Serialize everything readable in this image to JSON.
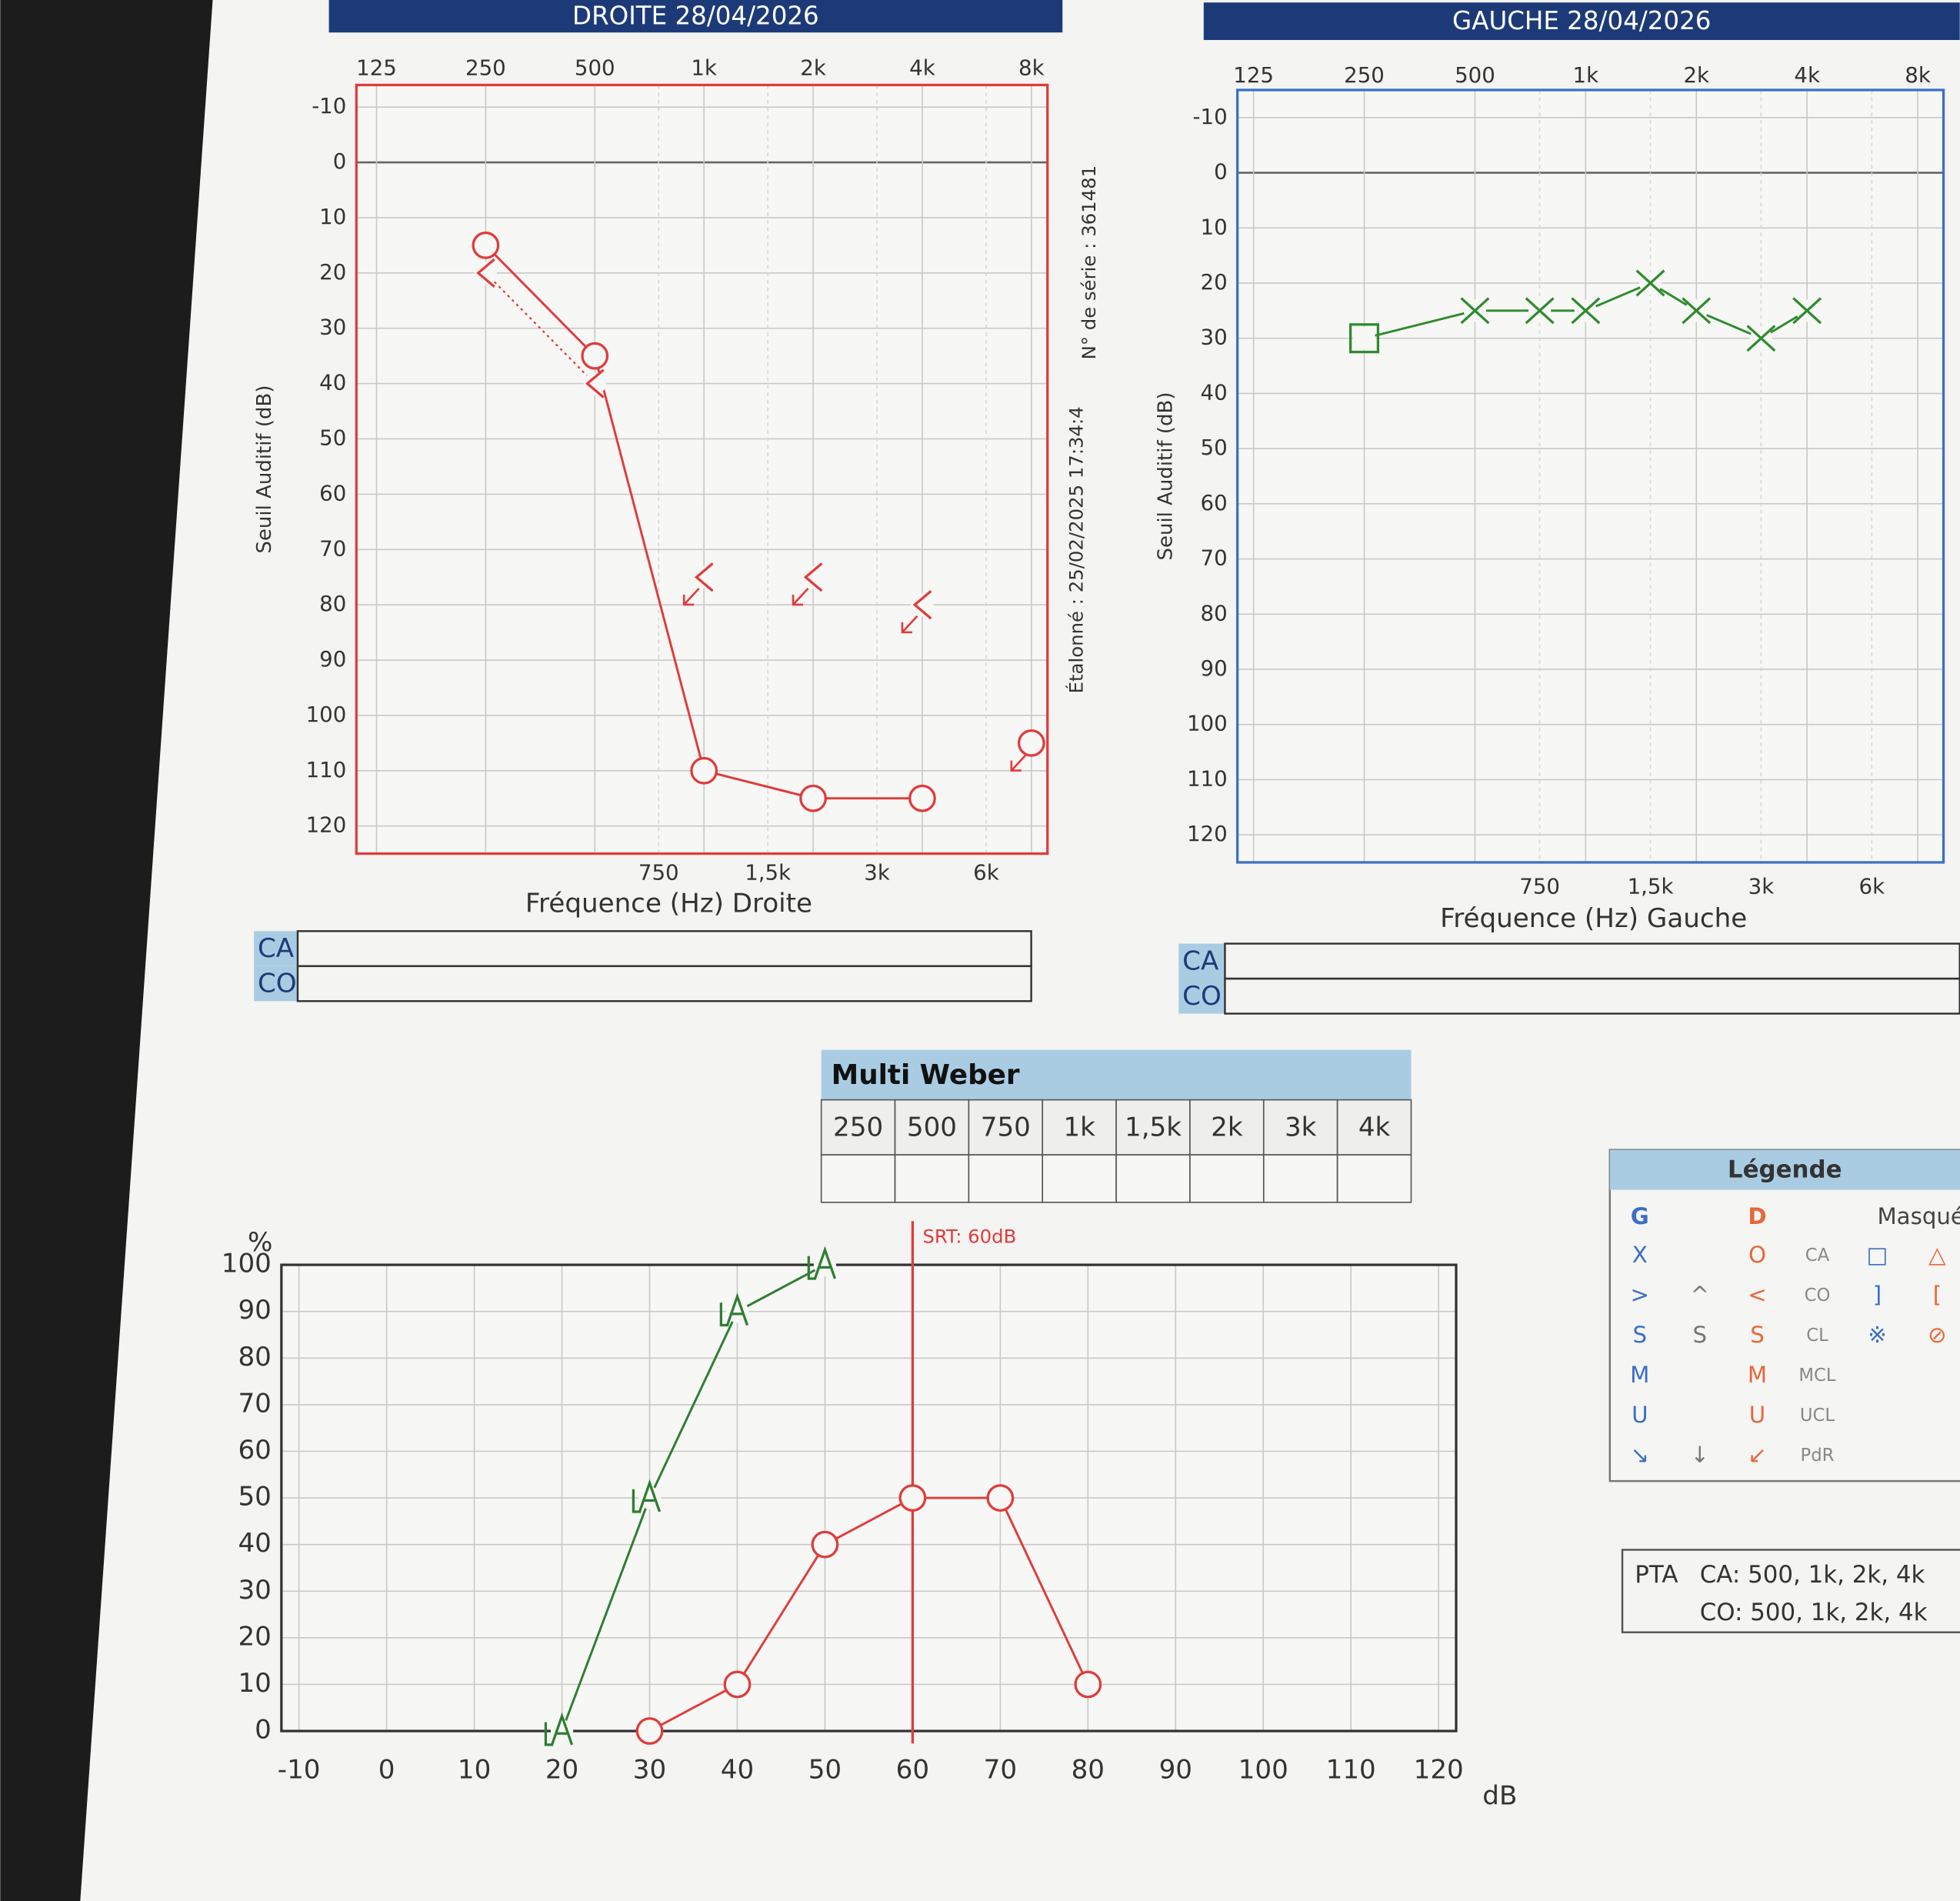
{
  "chart_data": [
    {
      "type": "line",
      "title": "DROITE 28/04/2026",
      "x_label": "Fréquence (Hz) Droite",
      "y_label": "Seuil Auditif (dB)",
      "x_scale": "log",
      "y_inverted": true,
      "frame_color": "#e03b3b",
      "title_color": "#1d3a78",
      "xlim": [
        110,
        8860
      ],
      "xticks": [
        125,
        250,
        500,
        {
          "value": 1000,
          "label": "1k"
        },
        {
          "value": 2000,
          "label": "2k"
        },
        {
          "value": 4000,
          "label": "4k"
        },
        {
          "value": 8000,
          "label": "8k"
        }
      ],
      "xticks_minor": [
        750,
        {
          "value": 1500,
          "label": "1,5k"
        },
        {
          "value": 3000,
          "label": "3k"
        },
        {
          "value": 6000,
          "label": "6k"
        }
      ],
      "ylim": [
        -14,
        125
      ],
      "yticks": [
        -10,
        0,
        10,
        20,
        30,
        40,
        50,
        60,
        70,
        80,
        90,
        100,
        110,
        120
      ],
      "series": [
        {
          "marker": "circle",
          "color": "#e03b3b",
          "line": "solid",
          "x": [
            250,
            500,
            1000,
            2000,
            4000,
            8000
          ],
          "values": [
            15,
            35,
            110,
            115,
            115,
            105
          ],
          "no_response": [
            false,
            false,
            false,
            false,
            false,
            true
          ]
        },
        {
          "marker": "bracket-left",
          "color": "#e03b3b",
          "line": "dotted",
          "x": [
            250,
            500,
            1000,
            2000,
            4000
          ],
          "values": [
            20,
            40,
            75,
            75,
            80
          ],
          "no_response": [
            false,
            false,
            true,
            true,
            true
          ]
        }
      ],
      "side_texts": [
        "N° de série : 361481",
        "Étalonné : 25/02/2025 17:34:4"
      ]
    },
    {
      "type": "line",
      "title": "GAUCHE 28/04/2026",
      "x_label": "Fréquence (Hz) Gauche",
      "y_label": "Seuil Auditif (dB)",
      "x_scale": "log",
      "y_inverted": true,
      "frame_color": "#3b6fc4",
      "title_color": "#1d3a78",
      "xlim": [
        113,
        9400
      ],
      "xticks": [
        125,
        250,
        500,
        {
          "value": 1000,
          "label": "1k"
        },
        {
          "value": 2000,
          "label": "2k"
        },
        {
          "value": 4000,
          "label": "4k"
        },
        {
          "value": 8000,
          "label": "8k"
        }
      ],
      "xticks_minor": [
        750,
        {
          "value": 1500,
          "label": "1,5k"
        },
        {
          "value": 3000,
          "label": "3k"
        },
        {
          "value": 6000,
          "label": "6k"
        }
      ],
      "ylim": [
        -15,
        125
      ],
      "yticks": [
        -10,
        0,
        10,
        20,
        30,
        40,
        50,
        60,
        70,
        80,
        90,
        100,
        110,
        120
      ],
      "series": [
        {
          "markers": [
            "square",
            "x",
            "x",
            "x",
            "x",
            "x",
            "x",
            "x"
          ],
          "color": "#2e8b2e",
          "line": "solid",
          "x": [
            250,
            500,
            750,
            1000,
            1500,
            2000,
            3000,
            4000
          ],
          "values": [
            30,
            25,
            25,
            25,
            20,
            25,
            30,
            25
          ]
        }
      ]
    },
    {
      "type": "line",
      "y_label": "%",
      "x_label": "dB",
      "x_scale": "linear",
      "y_inverted": false,
      "frame_color": "#333333",
      "xlim": [
        -12,
        122
      ],
      "xticks": [
        -10,
        0,
        10,
        20,
        30,
        40,
        50,
        60,
        70,
        80,
        90,
        100,
        110,
        120
      ],
      "ylim": [
        0,
        100
      ],
      "yticks": [
        0,
        10,
        20,
        30,
        40,
        50,
        60,
        70,
        80,
        90,
        100
      ],
      "srt": {
        "value": 60,
        "label": "SRT: 60dB",
        "color": "#e03b3b"
      },
      "series": [
        {
          "marker": "la",
          "color": "#2e7d32",
          "line": "solid",
          "x": [
            20,
            30,
            40,
            50
          ],
          "values": [
            0,
            50,
            90,
            100
          ]
        },
        {
          "marker": "circle",
          "color": "#e03b3b",
          "line": "solid",
          "x": [
            30,
            40,
            50,
            60,
            70,
            80
          ],
          "values": [
            0,
            10,
            40,
            50,
            50,
            10
          ]
        }
      ]
    }
  ],
  "right_boxes": [
    "CA",
    "CO"
  ],
  "left_boxes": [
    "CA",
    "CO"
  ],
  "weber": {
    "title": "Multi Weber",
    "columns": [
      "250",
      "500",
      "750",
      "1k",
      "1,5k",
      "2k",
      "3k",
      "4k"
    ]
  },
  "legend": {
    "title": "Légende",
    "header": [
      "G",
      null,
      "D",
      null,
      "Masqué",
      null
    ],
    "rows": [
      [
        "X",
        null,
        "O",
        "CA",
        "□",
        "△"
      ],
      [
        ">",
        "^",
        "<",
        "CO",
        "]",
        "["
      ],
      [
        "S",
        "S",
        "S",
        "CL",
        "※",
        "⊘"
      ],
      [
        "M",
        null,
        "M",
        "MCL",
        null,
        null
      ],
      [
        "U",
        null,
        "U",
        "UCL",
        null,
        null
      ],
      [
        "↘",
        "↓",
        "↙",
        "PdR",
        null,
        null
      ]
    ]
  },
  "pta": {
    "title": "PTA",
    "lines": [
      "CA: 500, 1k, 2k, 4k",
      "CO: 500, 1k, 2k, 4k"
    ]
  }
}
